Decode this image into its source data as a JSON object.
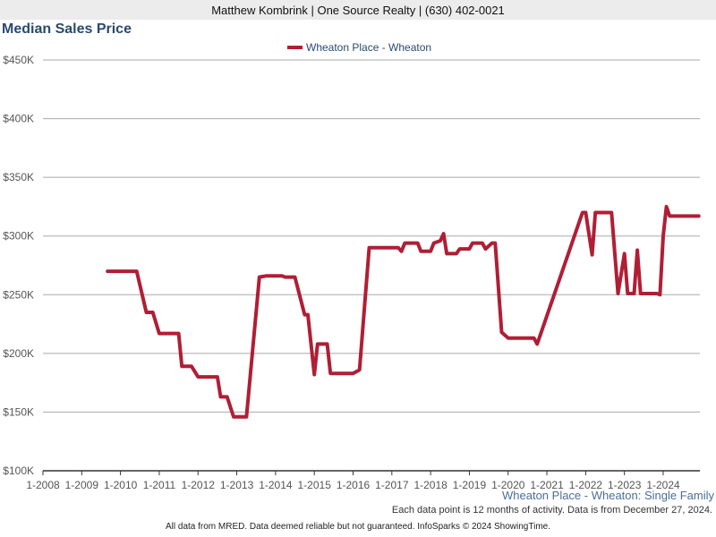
{
  "header": {
    "contact_line": "Matthew Kombrink | One Source Realty | (630) 402-0021"
  },
  "chart_title": "Median Sales Price",
  "subtitle": "Wheaton Place - Wheaton: Single Family",
  "note": "Each data point is 12 months of activity. Data is from December 27, 2024.",
  "footer": "All data from MRED. Data deemed reliable but not guaranteed. InfoSparks © 2024 ShowingTime.",
  "colors": {
    "series": "#b01e35",
    "grid": "#aaaaaa",
    "title": "#2a4a6e"
  },
  "chart_data": {
    "type": "line",
    "title": "Median Sales Price",
    "xlabel": "",
    "ylabel": "",
    "ylim": [
      100000,
      450000
    ],
    "y_ticks": [
      {
        "value": 100000,
        "label": "$100K"
      },
      {
        "value": 150000,
        "label": "$150K"
      },
      {
        "value": 200000,
        "label": "$200K"
      },
      {
        "value": 250000,
        "label": "$250K"
      },
      {
        "value": 300000,
        "label": "$300K"
      },
      {
        "value": 350000,
        "label": "$350K"
      },
      {
        "value": 400000,
        "label": "$400K"
      },
      {
        "value": 450000,
        "label": "$450K"
      }
    ],
    "x_ticks": [
      {
        "value": "2008-01",
        "label": "1-2008"
      },
      {
        "value": "2009-01",
        "label": "1-2009"
      },
      {
        "value": "2010-01",
        "label": "1-2010"
      },
      {
        "value": "2011-01",
        "label": "1-2011"
      },
      {
        "value": "2012-01",
        "label": "1-2012"
      },
      {
        "value": "2013-01",
        "label": "1-2013"
      },
      {
        "value": "2014-01",
        "label": "1-2014"
      },
      {
        "value": "2015-01",
        "label": "1-2015"
      },
      {
        "value": "2016-01",
        "label": "1-2016"
      },
      {
        "value": "2017-01",
        "label": "1-2017"
      },
      {
        "value": "2018-01",
        "label": "1-2018"
      },
      {
        "value": "2019-01",
        "label": "1-2019"
      },
      {
        "value": "2020-01",
        "label": "1-2020"
      },
      {
        "value": "2021-01",
        "label": "1-2021"
      },
      {
        "value": "2022-01",
        "label": "1-2022"
      },
      {
        "value": "2023-01",
        "label": "1-2023"
      },
      {
        "value": "2024-01",
        "label": "1-2024"
      }
    ],
    "x_range": [
      "2008-01",
      "2024-12"
    ],
    "grid": true,
    "legend_position": "top-center",
    "series": [
      {
        "name": "Wheaton Place - Wheaton",
        "points": [
          {
            "x": "2009-09",
            "y": 270000
          },
          {
            "x": "2010-06",
            "y": 270000
          },
          {
            "x": "2010-09",
            "y": 235000
          },
          {
            "x": "2010-11",
            "y": 235000
          },
          {
            "x": "2011-01",
            "y": 217000
          },
          {
            "x": "2011-07",
            "y": 217000
          },
          {
            "x": "2011-08",
            "y": 189000
          },
          {
            "x": "2011-11",
            "y": 189000
          },
          {
            "x": "2012-01",
            "y": 180000
          },
          {
            "x": "2012-07",
            "y": 180000
          },
          {
            "x": "2012-08",
            "y": 163000
          },
          {
            "x": "2012-10",
            "y": 163000
          },
          {
            "x": "2012-12",
            "y": 146000
          },
          {
            "x": "2013-04",
            "y": 146000
          },
          {
            "x": "2013-08",
            "y": 265000
          },
          {
            "x": "2013-10",
            "y": 266000
          },
          {
            "x": "2014-03",
            "y": 266000
          },
          {
            "x": "2014-04",
            "y": 265000
          },
          {
            "x": "2014-07",
            "y": 265000
          },
          {
            "x": "2014-10",
            "y": 233000
          },
          {
            "x": "2014-11",
            "y": 233000
          },
          {
            "x": "2015-01",
            "y": 182000
          },
          {
            "x": "2015-02",
            "y": 208000
          },
          {
            "x": "2015-05",
            "y": 208000
          },
          {
            "x": "2015-06",
            "y": 183000
          },
          {
            "x": "2016-01",
            "y": 183000
          },
          {
            "x": "2016-03",
            "y": 186000
          },
          {
            "x": "2016-06",
            "y": 290000
          },
          {
            "x": "2017-03",
            "y": 290000
          },
          {
            "x": "2017-04",
            "y": 287000
          },
          {
            "x": "2017-05",
            "y": 294000
          },
          {
            "x": "2017-09",
            "y": 294000
          },
          {
            "x": "2017-10",
            "y": 287000
          },
          {
            "x": "2018-01",
            "y": 287000
          },
          {
            "x": "2018-02",
            "y": 294000
          },
          {
            "x": "2018-04",
            "y": 296000
          },
          {
            "x": "2018-05",
            "y": 302000
          },
          {
            "x": "2018-06",
            "y": 285000
          },
          {
            "x": "2018-09",
            "y": 285000
          },
          {
            "x": "2018-10",
            "y": 289000
          },
          {
            "x": "2019-01",
            "y": 289000
          },
          {
            "x": "2019-02",
            "y": 294000
          },
          {
            "x": "2019-05",
            "y": 294000
          },
          {
            "x": "2019-06",
            "y": 289000
          },
          {
            "x": "2019-08",
            "y": 294000
          },
          {
            "x": "2019-09",
            "y": 294000
          },
          {
            "x": "2019-11",
            "y": 218000
          },
          {
            "x": "2020-01",
            "y": 213000
          },
          {
            "x": "2020-09",
            "y": 213000
          },
          {
            "x": "2020-10",
            "y": 208000
          },
          {
            "x": "2021-12",
            "y": 320000
          },
          {
            "x": "2022-01",
            "y": 320000
          },
          {
            "x": "2022-03",
            "y": 284000
          },
          {
            "x": "2022-04",
            "y": 320000
          },
          {
            "x": "2022-09",
            "y": 320000
          },
          {
            "x": "2022-11",
            "y": 251000
          },
          {
            "x": "2023-01",
            "y": 285000
          },
          {
            "x": "2023-02",
            "y": 251000
          },
          {
            "x": "2023-04",
            "y": 251000
          },
          {
            "x": "2023-05",
            "y": 288000
          },
          {
            "x": "2023-06",
            "y": 251000
          },
          {
            "x": "2023-11",
            "y": 251000
          },
          {
            "x": "2023-12",
            "y": 250000
          },
          {
            "x": "2024-01",
            "y": 300000
          },
          {
            "x": "2024-02",
            "y": 325000
          },
          {
            "x": "2024-03",
            "y": 317000
          },
          {
            "x": "2024-09",
            "y": 317000
          },
          {
            "x": "2024-12",
            "y": 317000
          }
        ]
      }
    ]
  }
}
